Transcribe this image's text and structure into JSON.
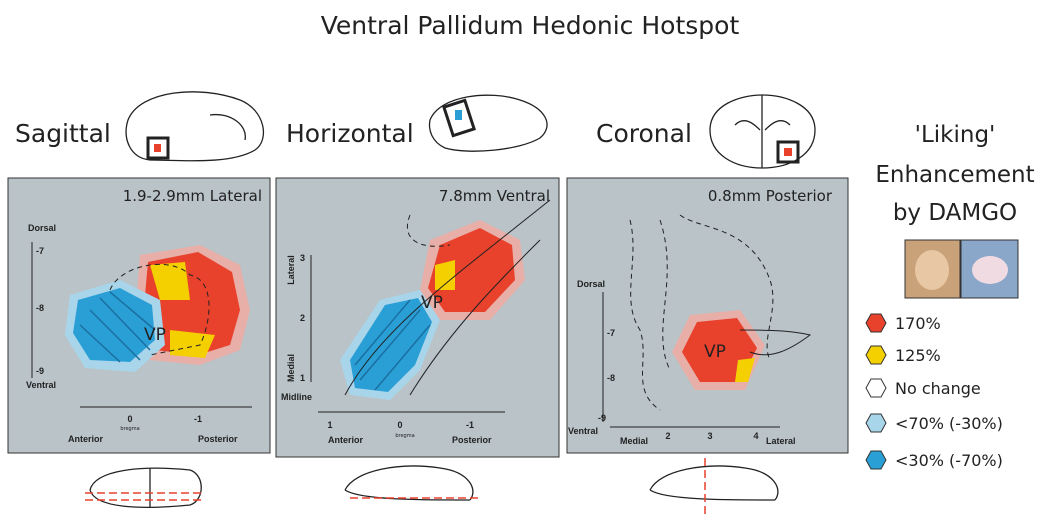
{
  "title": "Ventral Pallidum Hedonic Hotspot",
  "panels": [
    {
      "view": "Sagittal",
      "plane": "1.9-2.9mm Lateral",
      "region": "VP",
      "vertical_axis": {
        "top": "Dorsal",
        "bottom": "Ventral",
        "ticks": [
          "-7",
          "-8",
          "-9"
        ]
      },
      "horizontal_axis": {
        "ticks": [
          "0",
          "-1"
        ],
        "reference": "bregma",
        "left": "Anterior",
        "right": "Posterior"
      }
    },
    {
      "view": "Horizontal",
      "plane": "7.8mm Ventral",
      "region": "VP",
      "vertical_axis": {
        "top": "Lateral",
        "bottom": "Medial",
        "ticks": [
          "3",
          "2",
          "1"
        ],
        "base": "Midline"
      },
      "horizontal_axis": {
        "ticks": [
          "1",
          "0",
          "-1"
        ],
        "reference": "bregma",
        "left": "Anterior",
        "right": "Posterior"
      }
    },
    {
      "view": "Coronal",
      "plane": "0.8mm Posterior",
      "region": "VP",
      "vertical_axis": {
        "top": "Dorsal",
        "bottom": "Ventral",
        "ticks": [
          "-7",
          "-8",
          "-9"
        ]
      },
      "horizontal_axis": {
        "ticks": [
          "2",
          "3",
          "4"
        ],
        "left": "Medial",
        "right": "Lateral"
      }
    }
  ],
  "legend": {
    "title_lines": [
      "'Liking'",
      "Enhancement",
      "by DAMGO"
    ],
    "items": [
      "170%",
      "125%",
      "No change",
      "<70% (-30%)",
      "<30% (-70%)"
    ]
  }
}
